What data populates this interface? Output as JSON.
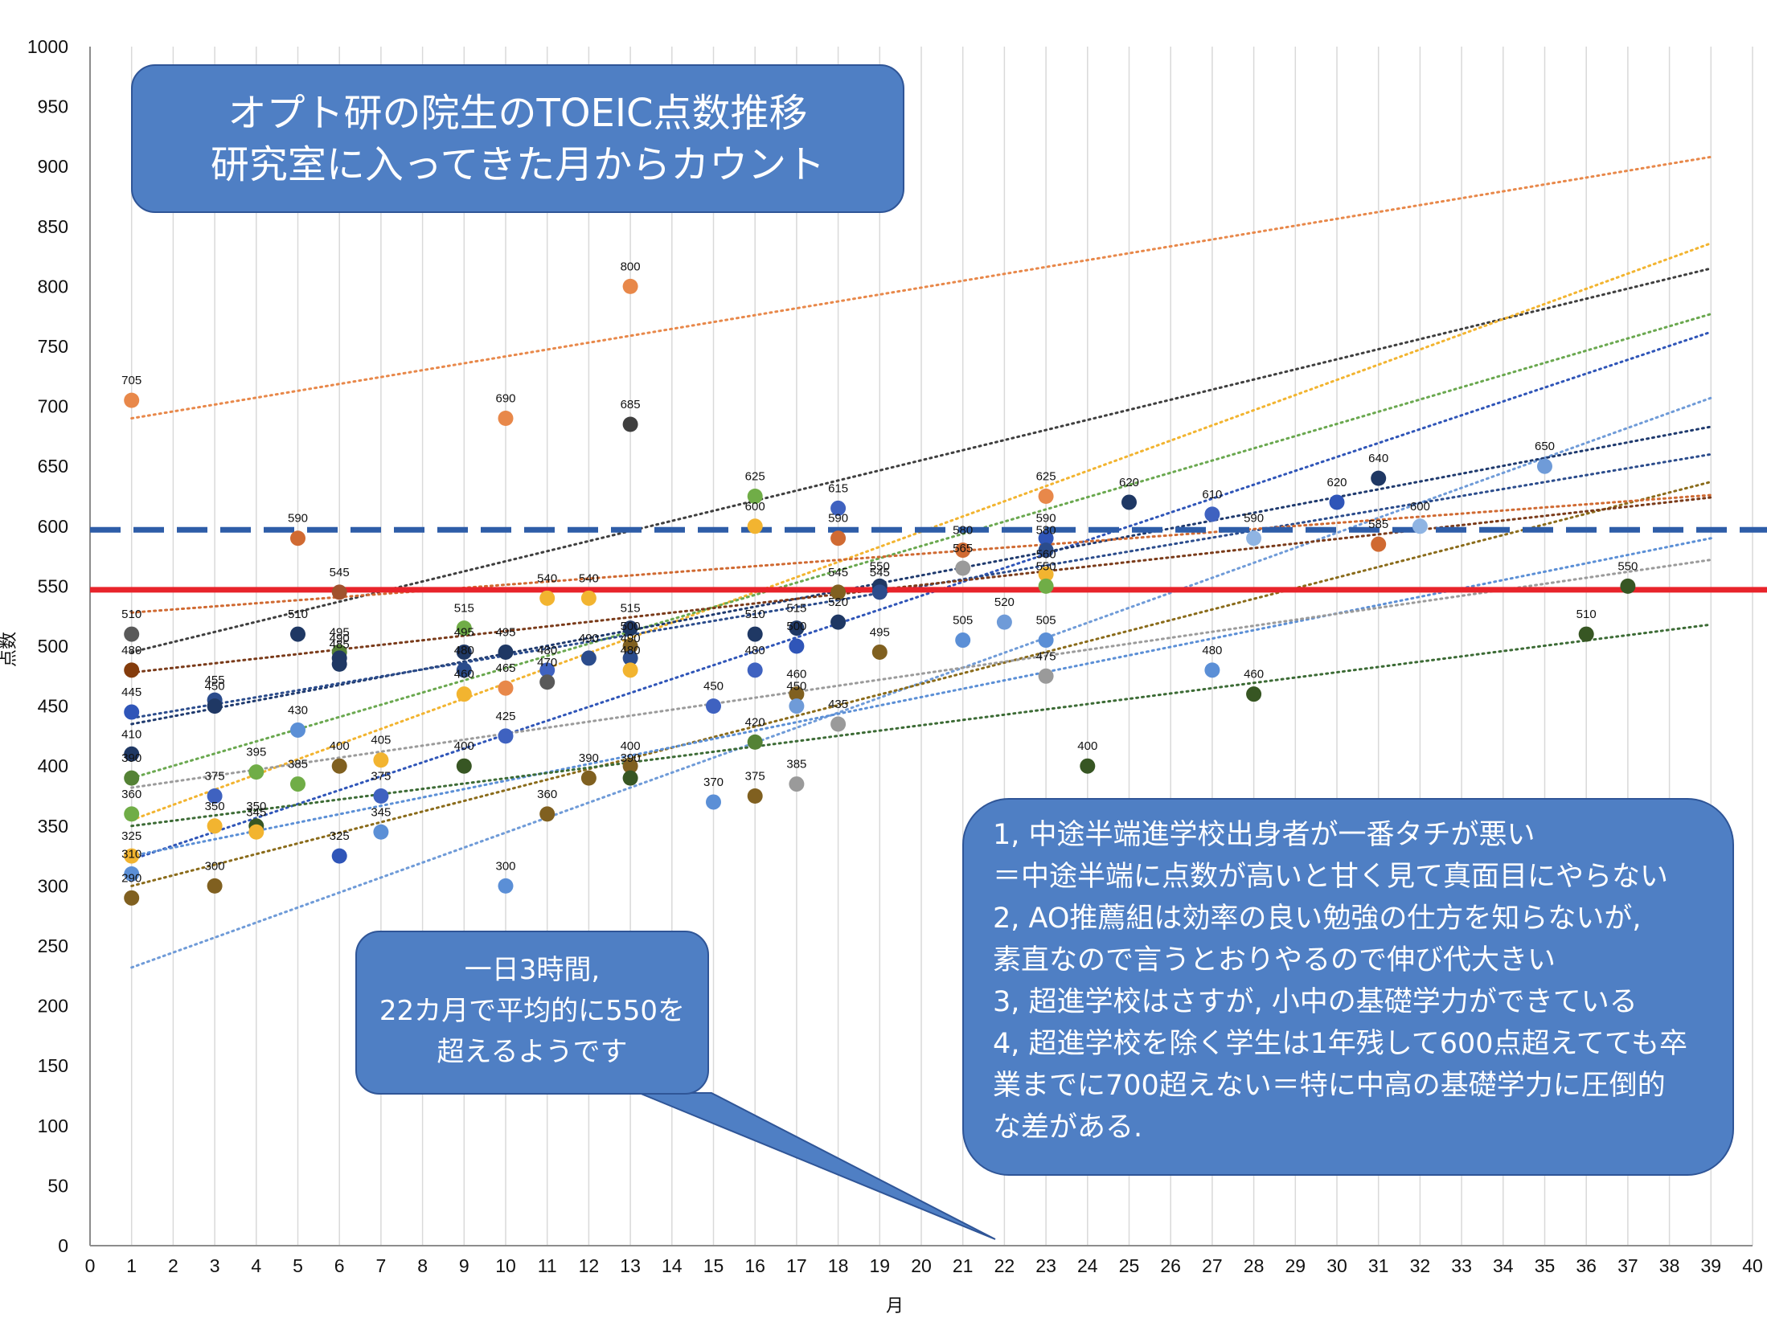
{
  "chart_data": {
    "type": "scatter",
    "title": "",
    "xlabel": "月",
    "ylabel": "点数",
    "xlim": [
      0,
      40
    ],
    "ylim": [
      0,
      1000
    ],
    "x_ticks": [
      0,
      1,
      2,
      3,
      4,
      5,
      6,
      7,
      8,
      9,
      10,
      11,
      12,
      13,
      14,
      15,
      16,
      17,
      18,
      19,
      20,
      21,
      22,
      23,
      24,
      25,
      26,
      27,
      28,
      29,
      30,
      31,
      32,
      33,
      34,
      35,
      36,
      37,
      38,
      39,
      40
    ],
    "y_ticks": [
      0,
      50,
      100,
      150,
      200,
      250,
      300,
      350,
      400,
      450,
      500,
      550,
      600,
      650,
      700,
      750,
      800,
      850,
      900,
      950,
      1000
    ],
    "grid": "vertical",
    "reference_lines": [
      {
        "y": 597,
        "style": "dashed",
        "color": "#2e5da8"
      },
      {
        "y": 547,
        "style": "solid",
        "color": "#e8242b"
      }
    ],
    "trendlines": [
      {
        "color": "#e8884a",
        "start": [
          1,
          690
        ],
        "end": [
          39,
          908
        ]
      },
      {
        "color": "#3f3f3f",
        "start": [
          1,
          495
        ],
        "end": [
          39,
          815
        ]
      },
      {
        "color": "#f2b430",
        "start": [
          1,
          355
        ],
        "end": [
          39,
          836
        ]
      },
      {
        "color": "#6aa84f",
        "start": [
          1,
          390
        ],
        "end": [
          39,
          777
        ]
      },
      {
        "color": "#2f55b8",
        "start": [
          1,
          322
        ],
        "end": [
          39,
          762
        ]
      },
      {
        "color": "#6f9bd8",
        "start": [
          1,
          232
        ],
        "end": [
          39,
          707
        ]
      },
      {
        "color": "#1f3a6e",
        "start": [
          1,
          435
        ],
        "end": [
          39,
          683
        ]
      },
      {
        "color": "#2b4c8c",
        "start": [
          1,
          440
        ],
        "end": [
          39,
          660
        ]
      },
      {
        "color": "#8a6b1a",
        "start": [
          1,
          300
        ],
        "end": [
          39,
          637
        ]
      },
      {
        "color": "#d06a32",
        "start": [
          1,
          528
        ],
        "end": [
          39,
          626
        ]
      },
      {
        "color": "#7a3b1a",
        "start": [
          1,
          478
        ],
        "end": [
          39,
          624
        ]
      },
      {
        "color": "#5b8fd6",
        "start": [
          1,
          325
        ],
        "end": [
          39,
          590
        ]
      },
      {
        "color": "#9a9a9a",
        "start": [
          1,
          382
        ],
        "end": [
          39,
          572
        ]
      },
      {
        "color": "#3c6b35",
        "start": [
          1,
          350
        ],
        "end": [
          39,
          518
        ]
      }
    ],
    "points": [
      {
        "x": 1,
        "y": 705,
        "label": "705",
        "color": "#e8884a"
      },
      {
        "x": 1,
        "y": 510,
        "label": "510",
        "color": "#595959"
      },
      {
        "x": 1,
        "y": 480,
        "label": "480",
        "color": "#843c0c"
      },
      {
        "x": 1,
        "y": 445,
        "label": "445",
        "color": "#2f55b8"
      },
      {
        "x": 1,
        "y": 410,
        "label": "410",
        "color": "#1f3864"
      },
      {
        "x": 1,
        "y": 390,
        "label": "390",
        "color": "#548235"
      },
      {
        "x": 1,
        "y": 360,
        "label": "360",
        "color": "#70ad47"
      },
      {
        "x": 1,
        "y": 325,
        "label": "325",
        "color": "#f2b430"
      },
      {
        "x": 1,
        "y": 310,
        "label": "310",
        "color": "#5b8fd6"
      },
      {
        "x": 1,
        "y": 290,
        "label": "290",
        "color": "#806020"
      },
      {
        "x": 3,
        "y": 455,
        "label": "455",
        "color": "#2b4c8c"
      },
      {
        "x": 3,
        "y": 450,
        "label": "450",
        "color": "#1f3864"
      },
      {
        "x": 3,
        "y": 375,
        "label": "375",
        "color": "#3f62c0"
      },
      {
        "x": 3,
        "y": 350,
        "label": "350",
        "color": "#f2b430"
      },
      {
        "x": 3,
        "y": 300,
        "label": "300",
        "color": "#806020"
      },
      {
        "x": 4,
        "y": 395,
        "label": "395",
        "color": "#70ad47"
      },
      {
        "x": 4,
        "y": 350,
        "label": "350",
        "color": "#375623"
      },
      {
        "x": 4,
        "y": 345,
        "label": "345",
        "color": "#f2b430"
      },
      {
        "x": 5,
        "y": 590,
        "label": "590",
        "color": "#d06a32"
      },
      {
        "x": 5,
        "y": 510,
        "label": "510",
        "color": "#1f3864"
      },
      {
        "x": 5,
        "y": 430,
        "label": "430",
        "color": "#5b8fd6"
      },
      {
        "x": 5,
        "y": 385,
        "label": "385",
        "color": "#70ad47"
      },
      {
        "x": 6,
        "y": 545,
        "label": "545",
        "color": "#a0522d"
      },
      {
        "x": 6,
        "y": 495,
        "label": "495",
        "color": "#548235"
      },
      {
        "x": 6,
        "y": 490,
        "label": "490",
        "color": "#1f3864"
      },
      {
        "x": 6,
        "y": 485,
        "label": "485",
        "color": "#1f3864"
      },
      {
        "x": 6,
        "y": 400,
        "label": "400",
        "color": "#806020"
      },
      {
        "x": 6,
        "y": 325,
        "label": "325",
        "color": "#2f55b8"
      },
      {
        "x": 7,
        "y": 405,
        "label": "405",
        "color": "#f2b430"
      },
      {
        "x": 7,
        "y": 375,
        "label": "375",
        "color": "#3f62c0"
      },
      {
        "x": 7,
        "y": 345,
        "label": "345",
        "color": "#5b8fd6"
      },
      {
        "x": 9,
        "y": 515,
        "label": "515",
        "color": "#70ad47"
      },
      {
        "x": 9,
        "y": 495,
        "label": "495",
        "color": "#1f3864"
      },
      {
        "x": 9,
        "y": 480,
        "label": "480",
        "color": "#2b4c8c"
      },
      {
        "x": 9,
        "y": 460,
        "label": "460",
        "color": "#f2b430"
      },
      {
        "x": 9,
        "y": 400,
        "label": "400",
        "color": "#375623"
      },
      {
        "x": 10,
        "y": 690,
        "label": "690",
        "color": "#e8884a"
      },
      {
        "x": 10,
        "y": 495,
        "label": "495",
        "color": "#1f3864"
      },
      {
        "x": 10,
        "y": 465,
        "label": "465",
        "color": "#e8884a"
      },
      {
        "x": 10,
        "y": 425,
        "label": "425",
        "color": "#3f62c0"
      },
      {
        "x": 10,
        "y": 300,
        "label": "300",
        "color": "#5b8fd6"
      },
      {
        "x": 11,
        "y": 540,
        "label": "540",
        "color": "#f2b430"
      },
      {
        "x": 11,
        "y": 480,
        "label": "480",
        "color": "#3f62c0"
      },
      {
        "x": 11,
        "y": 470,
        "label": "470",
        "color": "#595959"
      },
      {
        "x": 11,
        "y": 360,
        "label": "360",
        "color": "#806020"
      },
      {
        "x": 12,
        "y": 540,
        "label": "540",
        "color": "#f2b430"
      },
      {
        "x": 12,
        "y": 490,
        "label": "490",
        "color": "#2b4c8c"
      },
      {
        "x": 12,
        "y": 390,
        "label": "390",
        "color": "#806020"
      },
      {
        "x": 13,
        "y": 800,
        "label": "800",
        "color": "#e8884a"
      },
      {
        "x": 13,
        "y": 685,
        "label": "685",
        "color": "#3f3f3f"
      },
      {
        "x": 13,
        "y": 515,
        "label": "515",
        "color": "#1f3864"
      },
      {
        "x": 13,
        "y": 500,
        "label": "500",
        "color": "#806020"
      },
      {
        "x": 13,
        "y": 490,
        "label": "490",
        "color": "#2b4c8c"
      },
      {
        "x": 13,
        "y": 480,
        "label": "480",
        "color": "#f2b430"
      },
      {
        "x": 13,
        "y": 400,
        "label": "400",
        "color": "#806020"
      },
      {
        "x": 13,
        "y": 390,
        "label": "390",
        "color": "#375623"
      },
      {
        "x": 15,
        "y": 450,
        "label": "450",
        "color": "#3f62c0"
      },
      {
        "x": 15,
        "y": 370,
        "label": "370",
        "color": "#5b8fd6"
      },
      {
        "x": 16,
        "y": 625,
        "label": "625",
        "color": "#70ad47"
      },
      {
        "x": 16,
        "y": 600,
        "label": "600",
        "color": "#f2b430"
      },
      {
        "x": 16,
        "y": 510,
        "label": "510",
        "color": "#1f3864"
      },
      {
        "x": 16,
        "y": 480,
        "label": "480",
        "color": "#3f62c0"
      },
      {
        "x": 16,
        "y": 420,
        "label": "420",
        "color": "#548235"
      },
      {
        "x": 16,
        "y": 375,
        "label": "375",
        "color": "#806020"
      },
      {
        "x": 17,
        "y": 515,
        "label": "515",
        "color": "#1f3864"
      },
      {
        "x": 17,
        "y": 500,
        "label": "500",
        "color": "#2f55b8"
      },
      {
        "x": 17,
        "y": 460,
        "label": "460",
        "color": "#806020"
      },
      {
        "x": 17,
        "y": 450,
        "label": "450",
        "color": "#6f9bd8"
      },
      {
        "x": 17,
        "y": 385,
        "label": "385",
        "color": "#9a9a9a"
      },
      {
        "x": 18,
        "y": 615,
        "label": "615",
        "color": "#3f62c0"
      },
      {
        "x": 18,
        "y": 590,
        "label": "590",
        "color": "#d06a32"
      },
      {
        "x": 18,
        "y": 545,
        "label": "545",
        "color": "#806020"
      },
      {
        "x": 18,
        "y": 520,
        "label": "520",
        "color": "#1f3864"
      },
      {
        "x": 18,
        "y": 435,
        "label": "435",
        "color": "#9a9a9a"
      },
      {
        "x": 19,
        "y": 550,
        "label": "550",
        "color": "#1f3864"
      },
      {
        "x": 19,
        "y": 545,
        "label": "545",
        "color": "#2b4c8c"
      },
      {
        "x": 19,
        "y": 495,
        "label": "495",
        "color": "#806020"
      },
      {
        "x": 21,
        "y": 580,
        "label": "580",
        "color": "#d06a32"
      },
      {
        "x": 21,
        "y": 565,
        "label": "565",
        "color": "#9a9a9a"
      },
      {
        "x": 21,
        "y": 505,
        "label": "505",
        "color": "#5b8fd6"
      },
      {
        "x": 22,
        "y": 520,
        "label": "520",
        "color": "#6f9bd8"
      },
      {
        "x": 23,
        "y": 625,
        "label": "625",
        "color": "#e8884a"
      },
      {
        "x": 23,
        "y": 590,
        "label": "590",
        "color": "#2f55b8"
      },
      {
        "x": 23,
        "y": 580,
        "label": "580",
        "color": "#2b4c8c"
      },
      {
        "x": 23,
        "y": 560,
        "label": "560",
        "color": "#f2b430"
      },
      {
        "x": 23,
        "y": 550,
        "label": "550",
        "color": "#70ad47"
      },
      {
        "x": 23,
        "y": 505,
        "label": "505",
        "color": "#5b8fd6"
      },
      {
        "x": 23,
        "y": 475,
        "label": "475",
        "color": "#9a9a9a"
      },
      {
        "x": 24,
        "y": 400,
        "label": "400",
        "color": "#375623"
      },
      {
        "x": 25,
        "y": 620,
        "label": "620",
        "color": "#1f3864"
      },
      {
        "x": 27,
        "y": 610,
        "label": "610",
        "color": "#3f62c0"
      },
      {
        "x": 27,
        "y": 480,
        "label": "480",
        "color": "#5b8fd6"
      },
      {
        "x": 28,
        "y": 590,
        "label": "590",
        "color": "#8fb4e3"
      },
      {
        "x": 28,
        "y": 460,
        "label": "460",
        "color": "#375623"
      },
      {
        "x": 30,
        "y": 620,
        "label": "620",
        "color": "#2f55b8"
      },
      {
        "x": 31,
        "y": 640,
        "label": "640",
        "color": "#1f3864"
      },
      {
        "x": 31,
        "y": 585,
        "label": "585",
        "color": "#d06a32"
      },
      {
        "x": 32,
        "y": 600,
        "label": "600",
        "color": "#8fb4e3"
      },
      {
        "x": 35,
        "y": 650,
        "label": "650",
        "color": "#6f9bd8"
      },
      {
        "x": 36,
        "y": 510,
        "label": "510",
        "color": "#375623"
      },
      {
        "x": 37,
        "y": 550,
        "label": "550",
        "color": "#375623"
      }
    ]
  },
  "title_box": {
    "line1": "オプト研の院生のTOEIC点数推移",
    "line2": "研究室に入ってきた月からカウント"
  },
  "note_box": {
    "line1": "一日3時間,",
    "line2": "22カ月で平均的に550を",
    "line3": "超えるようです"
  },
  "findings_box": {
    "lines": [
      "1, 中途半端進学校出身者が一番タチが悪い",
      "＝中途半端に点数が高いと甘く見て真面目にやらない",
      "2, AO推薦組は効率の良い勉強の仕方を知らないが,",
      "素直なので言うとおりやるので伸び代大きい",
      "3, 超進学校はさすが, 小中の基礎学力ができている",
      "4, 超進学校を除く学生は1年残して600点超えてても卒",
      "業までに700超えない＝特に中高の基礎学力に圧倒的",
      "な差がある."
    ]
  }
}
